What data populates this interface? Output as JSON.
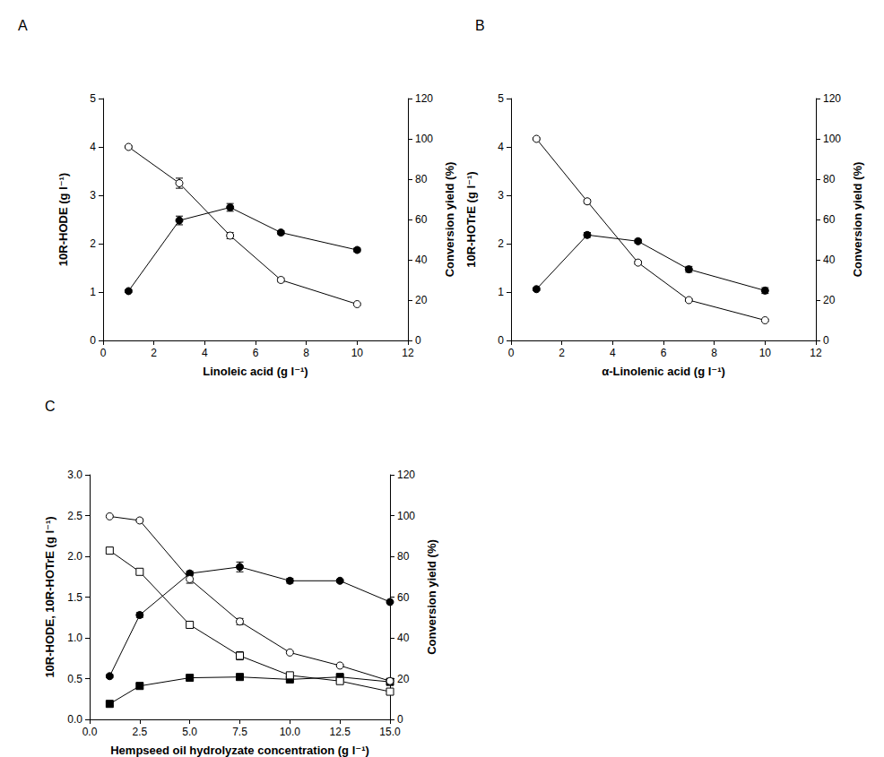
{
  "chart_data": [
    {
      "type": "line",
      "title": "A",
      "xlabel": "Linoleic acid (g l⁻¹)",
      "ylabel": "10R-HODE (g l⁻¹)",
      "y2label": "Conversion yield (%)",
      "xlim": [
        0,
        12
      ],
      "xticks": [
        0,
        2,
        4,
        6,
        8,
        10,
        12
      ],
      "ylim": [
        0,
        5
      ],
      "yticks": [
        0,
        1,
        2,
        3,
        4,
        5
      ],
      "y2lim": [
        0,
        120
      ],
      "y2ticks": [
        0,
        20,
        40,
        60,
        80,
        100,
        120
      ],
      "grid": false,
      "x": [
        1,
        3,
        5,
        7,
        10
      ],
      "series": [
        {
          "values": [
            1.02,
            2.48,
            2.75,
            2.23,
            1.87
          ],
          "errors": [
            0.03,
            0.09,
            0.08,
            0.04,
            0.04
          ],
          "marker": "filled_circle",
          "color": "#000000",
          "line_style": "solid"
        },
        {
          "axis": "y2",
          "values": [
            96,
            78,
            52,
            30,
            18
          ],
          "errors": [
            0.5,
            2.5,
            1.5,
            1,
            0.5
          ],
          "marker": "open_circle",
          "color": "#000000",
          "line_style": "solid"
        }
      ]
    },
    {
      "type": "line",
      "title": "B",
      "xlabel": "α-Linolenic acid (g l⁻¹)",
      "ylabel": "10R-HOTrE (g l⁻¹)",
      "y2label": "Conversion yield (%)",
      "xlim": [
        0,
        12
      ],
      "xticks": [
        0,
        2,
        4,
        6,
        8,
        10,
        12
      ],
      "ylim": [
        0,
        5
      ],
      "yticks": [
        0,
        1,
        2,
        3,
        4,
        5
      ],
      "y2lim": [
        0,
        120
      ],
      "y2ticks": [
        0,
        20,
        40,
        60,
        80,
        100,
        120
      ],
      "grid": false,
      "x": [
        1,
        3,
        5,
        7,
        10
      ],
      "series": [
        {
          "values": [
            1.06,
            2.18,
            2.05,
            1.47,
            1.03
          ],
          "errors": [
            0.03,
            0.05,
            0.04,
            0.06,
            0.06
          ],
          "marker": "filled_circle",
          "color": "#000000",
          "line_style": "solid"
        },
        {
          "axis": "y2",
          "values": [
            100,
            69,
            38.6,
            20,
            10
          ],
          "errors": [
            0.5,
            1,
            0.8,
            0.6,
            0.5
          ],
          "marker": "open_circle",
          "color": "#000000",
          "line_style": "solid"
        }
      ]
    },
    {
      "type": "line",
      "title": "C",
      "xlabel": "Hempseed oil hydrolyzate concentration (g l⁻¹)",
      "ylabel": "10R-HODE, 10R-HOTrE (g l⁻¹)",
      "y2label": "Conversion yield (%)",
      "xlim": [
        0,
        15
      ],
      "xticks": [
        {
          "value": 0,
          "label": "0.0"
        },
        {
          "value": 2.5,
          "label": "2.5"
        },
        {
          "value": 5,
          "label": "5.0"
        },
        {
          "value": 7.5,
          "label": "7.5"
        },
        {
          "value": 10,
          "label": "10.0"
        },
        {
          "value": 12.5,
          "label": "12.5"
        },
        {
          "value": 15,
          "label": "15.0"
        }
      ],
      "ylim": [
        0,
        3
      ],
      "yticks": [
        {
          "value": 0,
          "label": "0.0"
        },
        {
          "value": 0.5,
          "label": "0.5"
        },
        {
          "value": 1,
          "label": "1.0"
        },
        {
          "value": 1.5,
          "label": "1.5"
        },
        {
          "value": 2,
          "label": "2.0"
        },
        {
          "value": 2.5,
          "label": "2.5"
        },
        {
          "value": 3,
          "label": "3.0"
        }
      ],
      "y2lim": [
        0,
        120
      ],
      "y2ticks": [
        0,
        20,
        40,
        60,
        80,
        100,
        120
      ],
      "grid": false,
      "x": [
        1,
        2.5,
        5,
        7.5,
        10,
        12.5,
        15
      ],
      "series": [
        {
          "values": [
            0.53,
            1.28,
            1.79,
            1.87,
            1.7,
            1.7,
            1.44
          ],
          "errors": [
            0.02,
            0.03,
            0.03,
            0.06,
            0.03,
            0.02,
            0.02
          ],
          "marker": "filled_circle",
          "color": "#000000",
          "line_style": "solid"
        },
        {
          "values": [
            0.19,
            0.41,
            0.51,
            0.52,
            0.49,
            0.52,
            0.46
          ],
          "errors": [
            0.02,
            0.03,
            0.02,
            0.03,
            0.02,
            0.02,
            0.02
          ],
          "marker": "filled_square",
          "color": "#000000",
          "line_style": "solid"
        },
        {
          "axis": "y2",
          "values": [
            99.6,
            97.6,
            68.8,
            48,
            32.8,
            26.4,
            18.8
          ],
          "errors": [
            0.5,
            0.8,
            2,
            1.5,
            0.6,
            0.5,
            0.5
          ],
          "marker": "open_circle",
          "color": "#000000",
          "line_style": "solid"
        },
        {
          "axis": "y2",
          "values": [
            82.8,
            72.4,
            46.4,
            31.2,
            21.6,
            18.8,
            13.6
          ],
          "errors": [
            1.5,
            1,
            1.5,
            2,
            1,
            0.8,
            0.8
          ],
          "marker": "open_square",
          "color": "#000000",
          "line_style": "solid"
        }
      ]
    }
  ]
}
